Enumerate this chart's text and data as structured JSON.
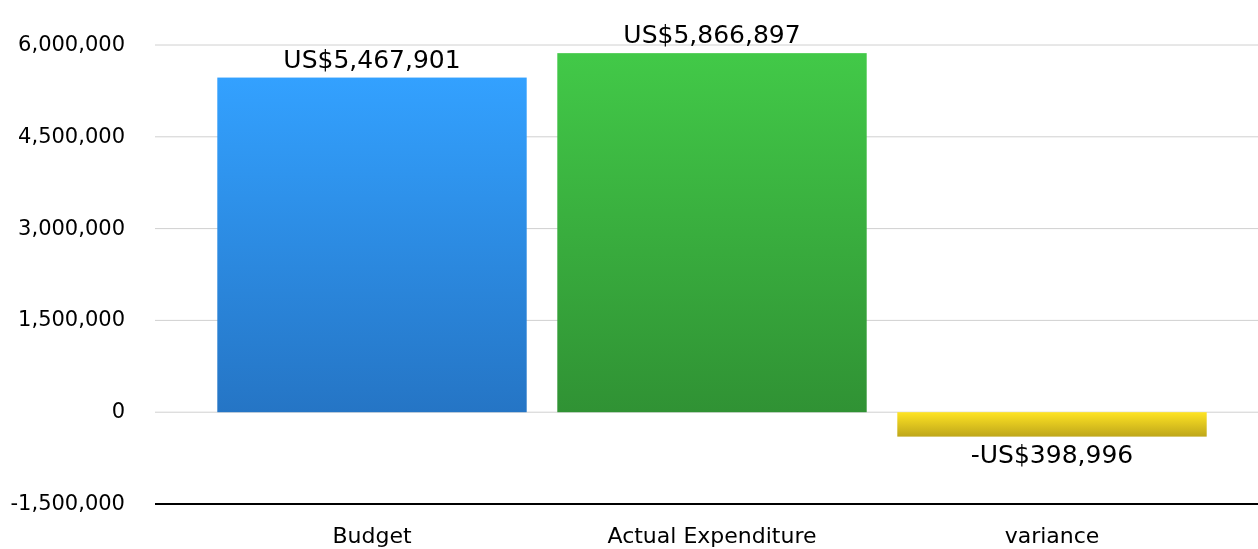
{
  "chart_data": {
    "type": "bar",
    "categories": [
      "Budget",
      "Actual Expenditure",
      "variance"
    ],
    "values": [
      5467901,
      5866897,
      -398996
    ],
    "colors": [
      "#2b87e3",
      "#37a83c",
      "#dbbf1e"
    ],
    "value_labels": [
      "US$5,467,901",
      "US$5,866,897",
      "-US$398,996"
    ],
    "ylim": [
      -1500000,
      6000000
    ],
    "yticks": [
      {
        "value": -1500000,
        "label": "-1,500,000"
      },
      {
        "value": 0,
        "label": "0"
      },
      {
        "value": 1500000,
        "label": "1,500,000"
      },
      {
        "value": 3000000,
        "label": "3,000,000"
      },
      {
        "value": 4500000,
        "label": "4,500,000"
      },
      {
        "value": 6000000,
        "label": "6,000,000"
      }
    ],
    "grid": "y"
  }
}
